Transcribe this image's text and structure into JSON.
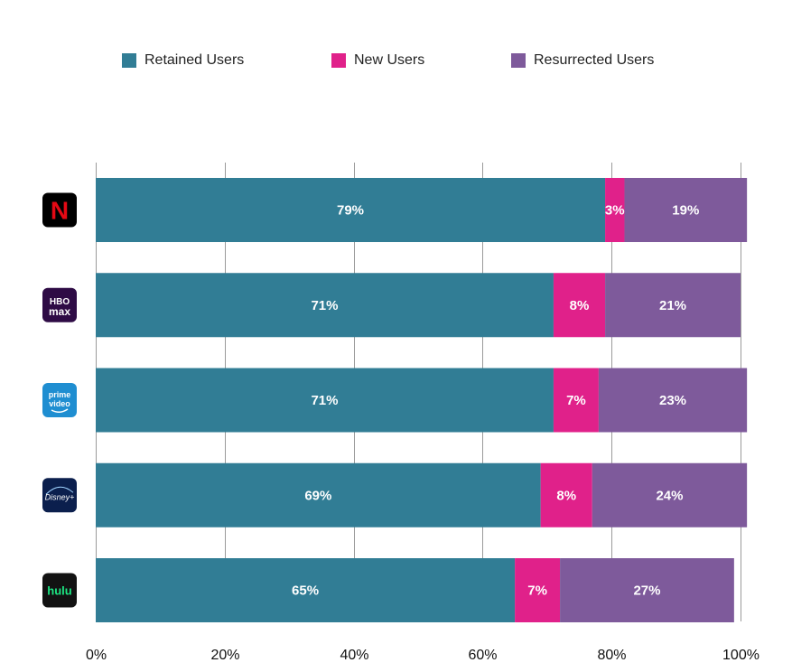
{
  "chart_data": {
    "type": "bar",
    "orientation": "horizontal",
    "stacked": true,
    "percent": true,
    "title": "",
    "xlabel": "",
    "ylabel": "",
    "xlim": [
      0,
      100
    ],
    "x_ticks": [
      "0%",
      "20%",
      "40%",
      "60%",
      "80%",
      "100%"
    ],
    "grid": true,
    "legend_position": "top",
    "categories": [
      "Netflix",
      "HBO Max",
      "Prime Video",
      "Disney+",
      "Hulu"
    ],
    "series": [
      {
        "name": "Retained Users",
        "color": "#317d95",
        "values": [
          79,
          71,
          71,
          69,
          65
        ],
        "labels": [
          "79%",
          "71%",
          "71%",
          "69%",
          "65%"
        ]
      },
      {
        "name": "New Users",
        "color": "#e0218a",
        "values": [
          3,
          8,
          7,
          8,
          7
        ],
        "labels": [
          "3%",
          "8%",
          "7%",
          "8%",
          "7%"
        ]
      },
      {
        "name": "Resurrected Users",
        "color": "#7e5a9b",
        "values": [
          19,
          21,
          23,
          24,
          27
        ],
        "labels": [
          "19%",
          "21%",
          "23%",
          "24%",
          "27%"
        ]
      }
    ]
  },
  "logos": [
    {
      "name": "netflix",
      "text": "N",
      "bg": "#000000",
      "fg": "#e50914"
    },
    {
      "name": "hbo-max",
      "text": "HBO",
      "text2": "max",
      "bg": "#2e0b45",
      "fg": "#ffffff"
    },
    {
      "name": "prime-video",
      "text": "prime",
      "text2": "video",
      "bg": "#1f8ed1",
      "fg": "#ffffff"
    },
    {
      "name": "disney-plus",
      "text": "Disney+",
      "bg": "#0b1f4d",
      "fg": "#ffffff"
    },
    {
      "name": "hulu",
      "text": "hulu",
      "bg": "#121212",
      "fg": "#1ce783"
    }
  ]
}
